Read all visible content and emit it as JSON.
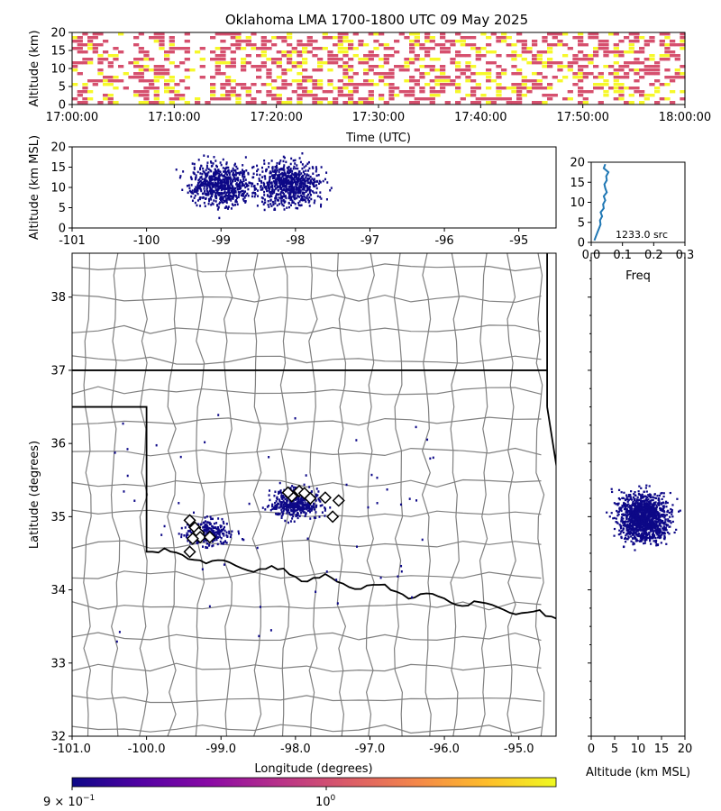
{
  "figure": {
    "title": "Oklahoma LMA 1700-1800 UTC 09 May 2025"
  },
  "chart_data": [
    {
      "id": "time-height",
      "type": "heatmap",
      "xlabel": "Time (UTC)",
      "ylabel": "Altitude (km)",
      "xlim": [
        "17:00:00",
        "18:00:00"
      ],
      "ylim": [
        0,
        20
      ],
      "x_ticks": [
        "17:00:00",
        "17:10:00",
        "17:20:00",
        "17:30:00",
        "17:40:00",
        "17:50:00",
        "18:00:00"
      ],
      "y_ticks": [
        "0",
        "5",
        "10",
        "15",
        "20"
      ]
    },
    {
      "id": "lon-alt",
      "type": "scatter",
      "xlabel": "",
      "ylabel": "Altitude (km MSL)",
      "xlim": [
        -101,
        -94.5
      ],
      "ylim": [
        0,
        20
      ],
      "x_ticks": [
        "-101",
        "-100",
        "-99",
        "-98",
        "-97",
        "-96",
        "-95"
      ],
      "y_ticks": [
        "0",
        "5",
        "10",
        "15",
        "20"
      ]
    },
    {
      "id": "alt-histogram",
      "type": "line",
      "xlabel": "Freq",
      "ylabel": "",
      "xlim": [
        0,
        0.3
      ],
      "ylim": [
        0,
        20
      ],
      "x_ticks": [
        "0.0",
        "0.1",
        "0.2",
        "0.3"
      ],
      "y_ticks": [
        "0",
        "5",
        "10",
        "15",
        "20"
      ],
      "annotation": "1233.0 src",
      "y": [
        0.5,
        1.5,
        2.5,
        3.5,
        4.5,
        5.5,
        6.5,
        7.5,
        8.5,
        9.5,
        10.5,
        11.5,
        12.5,
        13.5,
        14.5,
        15.5,
        16.5,
        17.5,
        18.5,
        19.5
      ],
      "x": [
        0.01,
        0.015,
        0.02,
        0.025,
        0.03,
        0.028,
        0.035,
        0.03,
        0.04,
        0.038,
        0.045,
        0.04,
        0.05,
        0.045,
        0.042,
        0.05,
        0.048,
        0.055,
        0.04,
        0.045
      ]
    },
    {
      "id": "plan-view",
      "type": "scatter",
      "xlabel": "Longitude (degrees)",
      "ylabel": "Latitude (degrees)",
      "xlim": [
        -101,
        -94.5
      ],
      "ylim": [
        32,
        38.6
      ],
      "x_ticks": [
        "-101.0",
        "-100.0",
        "-99.0",
        "-98.0",
        "-97.0",
        "-96.0",
        "-95.0"
      ],
      "y_ticks": [
        "32",
        "33",
        "34",
        "35",
        "36",
        "37",
        "38"
      ],
      "stations": [
        [
          -98.05,
          35.28
        ],
        [
          -97.95,
          35.35
        ],
        [
          -97.88,
          35.32
        ],
        [
          -97.8,
          35.25
        ],
        [
          -97.6,
          35.26
        ],
        [
          -97.42,
          35.22
        ],
        [
          -97.5,
          35.0
        ],
        [
          -98.1,
          35.33
        ],
        [
          -99.42,
          34.95
        ],
        [
          -99.35,
          34.85
        ],
        [
          -99.3,
          34.78
        ],
        [
          -99.28,
          34.72
        ],
        [
          -99.38,
          34.7
        ],
        [
          -99.15,
          34.72
        ],
        [
          -99.42,
          34.52
        ]
      ]
    },
    {
      "id": "alt-lat",
      "type": "scatter",
      "xlabel": "Altitude (km MSL)",
      "ylabel": "",
      "xlim": [
        0,
        20
      ],
      "ylim": [
        32,
        38.6
      ],
      "x_ticks": [
        "0",
        "5",
        "10",
        "15",
        "20"
      ]
    }
  ],
  "colorbar": {
    "label_min": "9 × 10",
    "label_min_exp": "−1",
    "label_mid": "10",
    "label_mid_exp": "0",
    "colors": [
      "#0d0887",
      "#5302a3",
      "#8b0aa5",
      "#b83289",
      "#db5c68",
      "#f48849",
      "#febd2a",
      "#f0f921"
    ]
  }
}
